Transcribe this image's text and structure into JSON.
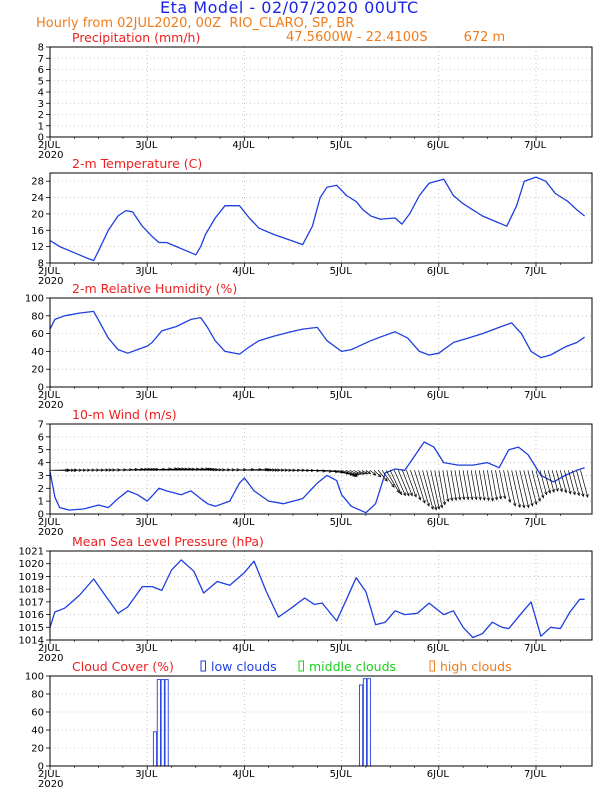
{
  "header": {
    "title": "Eta Model - 02/07/2020 00UTC",
    "subtitle_prefix": "Hourly from 02JUL2020, 00Z",
    "station": "RIO_CLARO, SP, BR",
    "coordinates": "47.5600W - 22.4100S",
    "elevation": "672  m"
  },
  "colors": {
    "title": "#1a24e6",
    "orange": "#f07c1c",
    "panel_title": "#ee2020",
    "series": "#1f3fe0",
    "low_clouds": "#1f3fe0",
    "middle_clouds": "#18d018",
    "high_clouds": "#f07c1c",
    "arrows": "#000000"
  },
  "chart_data": [
    {
      "type": "bar",
      "title": "Precipitation (mm/h)",
      "x_ticks": [
        "2JUL",
        "3JUL",
        "4JUL",
        "5JUL",
        "6JUL",
        "7JUL"
      ],
      "year_label": "2020",
      "ylim": [
        0,
        8
      ],
      "y_ticks": [
        0,
        1,
        2,
        3,
        4,
        5,
        6,
        7,
        8
      ],
      "grid": true,
      "series": [
        {
          "name": "precipitation",
          "x": [],
          "values": []
        }
      ]
    },
    {
      "type": "line",
      "title": "2-m Temperature (C)",
      "x_ticks": [
        "2JUL",
        "3JUL",
        "4JUL",
        "5JUL",
        "6JUL",
        "7JUL"
      ],
      "year_label": "2020",
      "ylim": [
        8,
        30
      ],
      "y_ticks": [
        8,
        12,
        16,
        20,
        24,
        28
      ],
      "grid": true,
      "series": [
        {
          "name": "temperature",
          "x": [
            0,
            0.1,
            0.2,
            0.3,
            0.4,
            0.45,
            0.5,
            0.6,
            0.7,
            0.78,
            0.85,
            0.95,
            1.05,
            1.12,
            1.2,
            1.3,
            1.4,
            1.5,
            1.55,
            1.6,
            1.7,
            1.8,
            1.95,
            2.05,
            2.15,
            2.3,
            2.48,
            2.6,
            2.7,
            2.78,
            2.85,
            2.95,
            3.05,
            3.15,
            3.22,
            3.3,
            3.4,
            3.55,
            3.62,
            3.7,
            3.8,
            3.9,
            4.05,
            4.15,
            4.25,
            4.35,
            4.45,
            4.6,
            4.7,
            4.8,
            4.88,
            5.0,
            5.1,
            5.2,
            5.33,
            5.42,
            5.5
          ],
          "values": [
            13.5,
            12,
            11,
            10,
            9,
            8.6,
            11,
            16,
            19.5,
            20.8,
            20.5,
            17,
            14.5,
            13,
            13,
            12,
            11,
            10,
            12,
            15,
            19,
            22,
            22,
            19,
            16.5,
            15,
            13.5,
            12.5,
            17,
            24,
            26.5,
            27,
            24.5,
            23,
            21,
            19.5,
            18.7,
            19,
            17.5,
            20,
            24.5,
            27.5,
            28.5,
            24.5,
            22.5,
            21,
            19.5,
            18,
            17,
            22,
            28,
            29,
            28,
            25,
            23,
            21,
            19.5
          ]
        }
      ]
    },
    {
      "type": "line",
      "title": "2-m Relative Humidity (%)",
      "x_ticks": [
        "2JUL",
        "3JUL",
        "4JUL",
        "5JUL",
        "6JUL",
        "7JUL"
      ],
      "year_label": "2020",
      "ylim": [
        0,
        100
      ],
      "y_ticks": [
        0,
        20,
        40,
        60,
        80,
        100
      ],
      "grid": true,
      "series": [
        {
          "name": "relative_humidity",
          "x": [
            0,
            0.05,
            0.15,
            0.3,
            0.45,
            0.5,
            0.6,
            0.7,
            0.8,
            0.9,
            1.0,
            1.05,
            1.15,
            1.3,
            1.45,
            1.55,
            1.62,
            1.7,
            1.8,
            1.95,
            2.05,
            2.15,
            2.3,
            2.48,
            2.6,
            2.75,
            2.85,
            3.0,
            3.1,
            3.2,
            3.3,
            3.42,
            3.55,
            3.68,
            3.8,
            3.9,
            4.0,
            4.15,
            4.3,
            4.45,
            4.62,
            4.75,
            4.85,
            4.95,
            5.05,
            5.15,
            5.3,
            5.42,
            5.5
          ],
          "values": [
            65,
            76,
            80,
            83,
            85,
            75,
            55,
            42,
            38,
            42,
            46,
            50,
            63,
            68,
            76,
            78,
            67,
            52,
            40,
            37,
            45,
            52,
            57,
            62,
            65,
            67,
            52,
            40,
            42,
            47,
            52,
            57,
            62,
            55,
            40,
            36,
            38,
            50,
            55,
            60,
            67,
            72,
            60,
            40,
            33,
            36,
            45,
            50,
            56
          ]
        }
      ]
    },
    {
      "type": "line",
      "title": "10-m Wind (m/s)",
      "x_ticks": [
        "2JUL",
        "3JUL",
        "4JUL",
        "5JUL",
        "6JUL",
        "7JUL"
      ],
      "year_label": "2020",
      "ylim": [
        0,
        7
      ],
      "y_ticks": [
        0,
        1,
        2,
        3,
        4,
        5,
        6,
        7
      ],
      "grid": true,
      "series": [
        {
          "name": "wind_speed",
          "x": [
            0,
            0.05,
            0.1,
            0.2,
            0.35,
            0.5,
            0.6,
            0.7,
            0.8,
            0.9,
            1.0,
            1.05,
            1.12,
            1.2,
            1.35,
            1.45,
            1.55,
            1.62,
            1.7,
            1.85,
            1.95,
            2.0,
            2.1,
            2.25,
            2.4,
            2.6,
            2.75,
            2.85,
            2.95,
            3.0,
            3.1,
            3.25,
            3.35,
            3.45,
            3.55,
            3.65,
            3.75,
            3.85,
            3.95,
            4.05,
            4.2,
            4.35,
            4.5,
            4.62,
            4.72,
            4.82,
            4.92,
            5.05,
            5.18,
            5.3,
            5.42,
            5.5
          ],
          "values": [
            3.3,
            1.3,
            0.5,
            0.3,
            0.4,
            0.7,
            0.5,
            1.2,
            1.8,
            1.5,
            1.0,
            1.4,
            2.0,
            1.8,
            1.5,
            1.8,
            1.2,
            0.8,
            0.6,
            1.0,
            2.4,
            2.8,
            1.8,
            1.0,
            0.8,
            1.2,
            2.4,
            3.0,
            2.6,
            1.5,
            0.6,
            0.1,
            0.8,
            3.2,
            3.5,
            3.4,
            4.5,
            5.6,
            5.2,
            4.0,
            3.8,
            3.8,
            4.0,
            3.6,
            5.0,
            5.2,
            4.6,
            3.0,
            2.5,
            3.0,
            3.4,
            3.6
          ]
        },
        {
          "name": "wind_direction_deg",
          "x": [
            0,
            0.5,
            1.0,
            1.5,
            2.0,
            2.5,
            2.8,
            3.0,
            3.3,
            3.5,
            4.0,
            4.5,
            5.0,
            5.5
          ],
          "values": [
            270,
            268,
            265,
            265,
            268,
            270,
            275,
            290,
            310,
            335,
            350,
            350,
            345,
            345
          ]
        }
      ]
    },
    {
      "type": "line",
      "title": "Mean Sea Level Pressure (hPa)",
      "x_ticks": [
        "2JUL",
        "3JUL",
        "4JUL",
        "5JUL",
        "6JUL",
        "7JUL"
      ],
      "year_label": "2020",
      "ylim": [
        1014,
        1021
      ],
      "y_ticks": [
        1014,
        1015,
        1016,
        1017,
        1018,
        1019,
        1020,
        1021
      ],
      "grid": true,
      "series": [
        {
          "name": "mslp",
          "x": [
            0,
            0.05,
            0.15,
            0.3,
            0.45,
            0.55,
            0.7,
            0.8,
            0.95,
            1.05,
            1.15,
            1.25,
            1.35,
            1.48,
            1.58,
            1.72,
            1.85,
            2.0,
            2.1,
            2.22,
            2.35,
            2.48,
            2.62,
            2.72,
            2.8,
            2.95,
            3.05,
            3.15,
            3.25,
            3.35,
            3.45,
            3.55,
            3.65,
            3.78,
            3.9,
            4.05,
            4.15,
            4.25,
            4.35,
            4.45,
            4.55,
            4.65,
            4.72,
            4.85,
            4.95,
            5.05,
            5.15,
            5.25,
            5.35,
            5.45,
            5.5
          ],
          "values": [
            1015,
            1016.2,
            1016.5,
            1017.5,
            1018.8,
            1017.7,
            1016.1,
            1016.6,
            1018.2,
            1018.2,
            1017.9,
            1019.5,
            1020.3,
            1019.4,
            1017.7,
            1018.6,
            1018.3,
            1019.3,
            1020.2,
            1017.9,
            1015.8,
            1016.5,
            1017.3,
            1016.8,
            1016.9,
            1015.5,
            1017.2,
            1018.9,
            1017.8,
            1015.2,
            1015.4,
            1016.3,
            1016.0,
            1016.1,
            1016.9,
            1016.0,
            1016.3,
            1015.0,
            1014.2,
            1014.5,
            1015.4,
            1015.0,
            1014.9,
            1016.1,
            1017.0,
            1014.3,
            1015.0,
            1014.9,
            1016.2,
            1017.2,
            1017.2
          ]
        }
      ]
    },
    {
      "type": "bar",
      "title": "Cloud Cover (%)",
      "x_ticks": [
        "2JUL",
        "3JUL",
        "4JUL",
        "5JUL",
        "6JUL",
        "7JUL"
      ],
      "year_label": "2020",
      "ylim": [
        0,
        100
      ],
      "y_ticks": [
        0,
        20,
        40,
        60,
        80,
        100
      ],
      "grid": true,
      "legend": [
        "low clouds",
        "middle clouds",
        "high clouds"
      ],
      "series": [
        {
          "name": "low clouds",
          "x": [
            1.08,
            1.12,
            1.16,
            1.2,
            3.2,
            3.24,
            3.28
          ],
          "values": [
            38,
            96,
            96,
            96,
            90,
            97,
            97
          ]
        },
        {
          "name": "middle clouds",
          "x": [],
          "values": []
        },
        {
          "name": "high clouds",
          "x": [],
          "values": []
        }
      ]
    }
  ]
}
